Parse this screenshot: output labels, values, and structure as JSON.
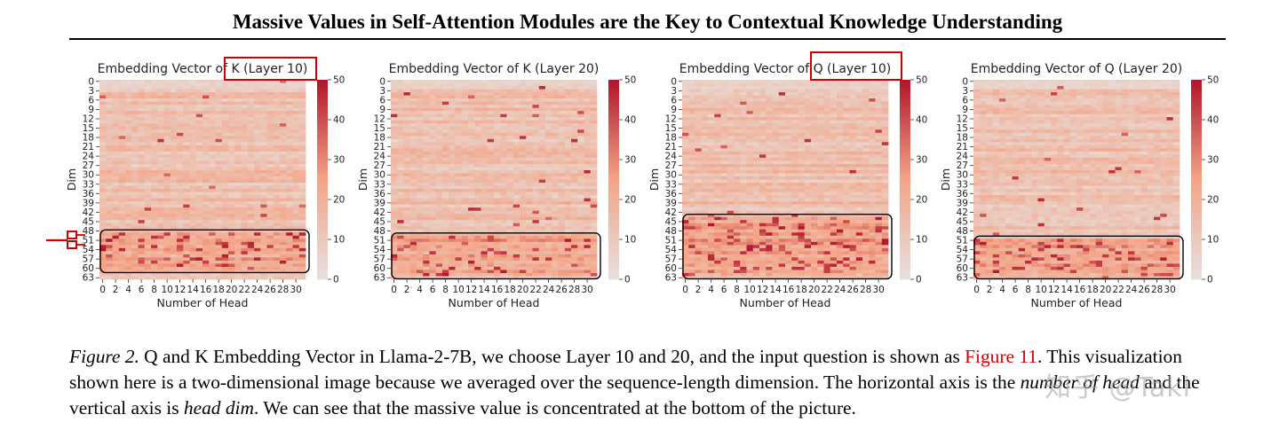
{
  "paper_title": "Massive Values in Self-Attention Modules are the Key to Contextual Knowledge Understanding",
  "colors": {
    "heat_low": "#e6e0dd",
    "heat_mid": "#f4a487",
    "heat_high": "#b2182b",
    "highlight_box": "#d00000",
    "region_box": "#000000",
    "link": "#d20000"
  },
  "chart_data": [
    {
      "type": "heatmap",
      "title": "Embedding Vector of K (Layer 10)",
      "xlabel": "Number of Head",
      "ylabel": "Dim",
      "x_ticks": [
        "0",
        "2",
        "4",
        "6",
        "8",
        "10",
        "12",
        "14",
        "16",
        "18",
        "20",
        "22",
        "24",
        "26",
        "28",
        "30"
      ],
      "y_ticks": [
        "0",
        "3",
        "6",
        "9",
        "12",
        "15",
        "18",
        "21",
        "24",
        "27",
        "30",
        "33",
        "36",
        "39",
        "42",
        "45",
        "48",
        "51",
        "54",
        "57",
        "60",
        "63"
      ],
      "colorbar_ticks": [
        "0",
        "10",
        "20",
        "30",
        "40",
        "50"
      ],
      "vmin": 0,
      "vmax": 50,
      "title_highlight": "Layer 10",
      "massive_region_dims": [
        49,
        60
      ],
      "seed": 11
    },
    {
      "type": "heatmap",
      "title": "Embedding Vector of K (Layer 20)",
      "xlabel": "Number of Head",
      "ylabel": "Dim",
      "x_ticks": [
        "0",
        "2",
        "4",
        "6",
        "8",
        "10",
        "12",
        "14",
        "16",
        "18",
        "20",
        "22",
        "24",
        "26",
        "28",
        "30"
      ],
      "y_ticks": [
        "0",
        "3",
        "6",
        "9",
        "12",
        "15",
        "18",
        "21",
        "24",
        "27",
        "30",
        "33",
        "36",
        "39",
        "42",
        "45",
        "48",
        "51",
        "54",
        "57",
        "60",
        "63"
      ],
      "colorbar_ticks": [
        "0",
        "10",
        "20",
        "30",
        "40",
        "50"
      ],
      "vmin": 0,
      "vmax": 50,
      "massive_region_dims": [
        50,
        62
      ],
      "seed": 23
    },
    {
      "type": "heatmap",
      "title": "Embedding Vector of Q (Layer 10)",
      "xlabel": "Number of Head",
      "ylabel": "Dim",
      "x_ticks": [
        "0",
        "2",
        "4",
        "6",
        "8",
        "10",
        "12",
        "14",
        "16",
        "18",
        "20",
        "22",
        "24",
        "26",
        "28",
        "30"
      ],
      "y_ticks": [
        "0",
        "3",
        "6",
        "9",
        "12",
        "15",
        "18",
        "21",
        "24",
        "27",
        "30",
        "33",
        "36",
        "39",
        "42",
        "45",
        "48",
        "51",
        "54",
        "57",
        "60",
        "63"
      ],
      "colorbar_ticks": [
        "0",
        "10",
        "20",
        "30",
        "40",
        "50"
      ],
      "vmin": 0,
      "vmax": 50,
      "title_highlight": "Q (Layer 10)",
      "massive_region_dims": [
        44,
        62
      ],
      "seed": 37
    },
    {
      "type": "heatmap",
      "title": "Embedding Vector of Q (Layer 20)",
      "xlabel": "Number of Head",
      "ylabel": "Dim",
      "x_ticks": [
        "0",
        "2",
        "4",
        "6",
        "8",
        "10",
        "12",
        "14",
        "16",
        "18",
        "20",
        "22",
        "24",
        "26",
        "28",
        "30"
      ],
      "y_ticks": [
        "0",
        "3",
        "6",
        "9",
        "12",
        "15",
        "18",
        "21",
        "24",
        "27",
        "30",
        "33",
        "36",
        "39",
        "42",
        "45",
        "48",
        "51",
        "54",
        "57",
        "60",
        "63"
      ],
      "colorbar_ticks": [
        "0",
        "10",
        "20",
        "30",
        "40",
        "50"
      ],
      "vmin": 0,
      "vmax": 50,
      "massive_region_dims": [
        51,
        62
      ],
      "seed": 53
    }
  ],
  "caption": {
    "lead": "Figure 2.",
    "part1": " Q and K Embedding Vector in Llama-2-7B, we choose Layer 10 and 20, and the input question is shown as ",
    "link": "Figure 11",
    "part2": ". This visualization shown here is a two-dimensional image because we averaged over the sequence-length dimension. The horizontal axis is the ",
    "em1": "number of head",
    "part3": " and the vertical axis is ",
    "em2": "head dim",
    "part4": ". We can see that the massive value is concentrated at the bottom of the picture."
  },
  "watermark": "知乎 @Taki"
}
